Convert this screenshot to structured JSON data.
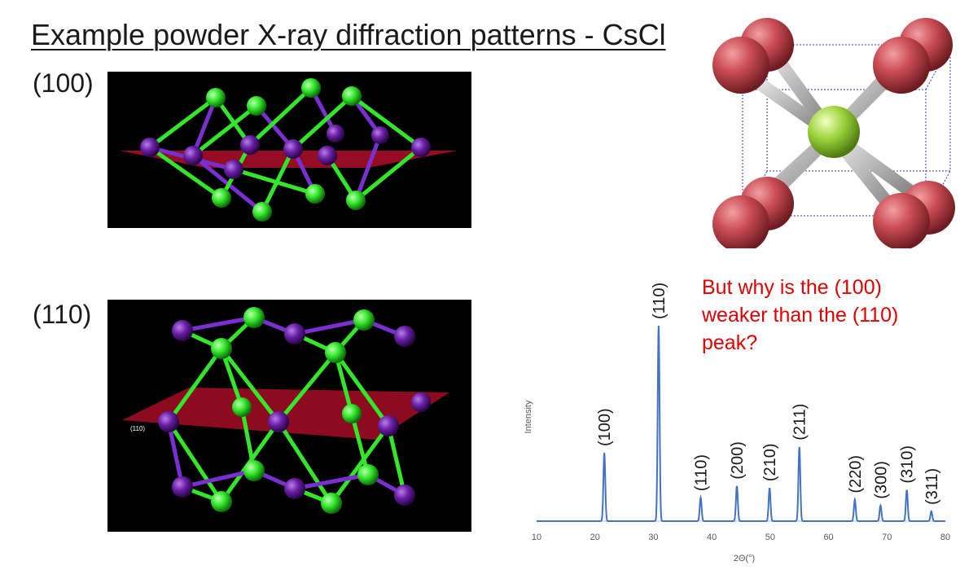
{
  "slide": {
    "title": "Example powder X-ray diffraction patterns - CsCl",
    "plane_100_label": "(100)",
    "plane_110_label": "(110)",
    "plane_110_inset": "(110)",
    "question_lines": [
      "But why is the (100)",
      "weaker than the (110)",
      "peak?"
    ],
    "colors": {
      "cl_atom": "#33e62a",
      "cs_atom": "#6a1fa6",
      "plane": "#c8102e",
      "question": "#e00000",
      "cell_corner": "#cc4d55",
      "cell_center": "#9ad23a"
    }
  },
  "chart_data": {
    "type": "line",
    "xlabel": "2Θ(°)",
    "ylabel": "Intensity",
    "xlim": [
      10,
      80
    ],
    "xticks": [
      10,
      20,
      30,
      40,
      50,
      60,
      70,
      80
    ],
    "grid": false,
    "line_color": "#4472c4",
    "peaks": [
      {
        "label": "(100)",
        "x": 21.6,
        "y": 0.35
      },
      {
        "label": "(110)",
        "x": 30.9,
        "y": 1.0
      },
      {
        "label": "(110)",
        "x": 38.1,
        "y": 0.12
      },
      {
        "label": "(200)",
        "x": 44.3,
        "y": 0.18
      },
      {
        "label": "(210)",
        "x": 49.9,
        "y": 0.17
      },
      {
        "label": "(211)",
        "x": 55.0,
        "y": 0.38
      },
      {
        "label": "(220)",
        "x": 64.5,
        "y": 0.11
      },
      {
        "label": "(300)",
        "x": 68.9,
        "y": 0.08
      },
      {
        "label": "(310)",
        "x": 73.4,
        "y": 0.16
      },
      {
        "label": "(311)",
        "x": 77.6,
        "y": 0.05
      }
    ]
  }
}
